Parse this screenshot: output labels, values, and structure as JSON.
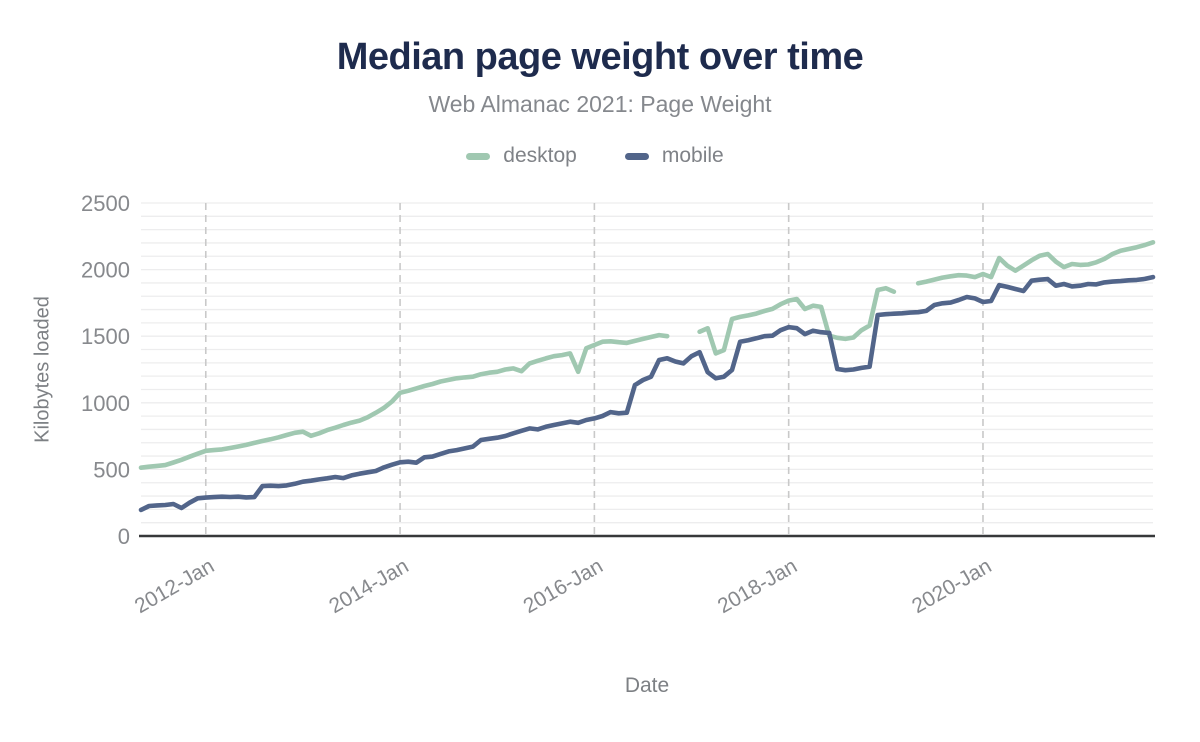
{
  "header": {
    "title": "Median page weight over time",
    "subtitle": "Web Almanac 2021: Page Weight"
  },
  "legend": [
    {
      "label": "desktop",
      "color": "#a0c8b1"
    },
    {
      "label": "mobile",
      "color": "#52658a"
    }
  ],
  "axes": {
    "y_title": "Kilobytes loaded",
    "x_title": "Date"
  },
  "colors": {
    "title": "#1e2b4d",
    "subtitle_gray": "#85888d",
    "tick_gray": "#87898d",
    "minor_grid": "#ededee",
    "vertical_grid": "#c9c9c9",
    "axis_line": "#37383a",
    "desktop": "#a0c8b1",
    "mobile": "#52658a"
  },
  "chart_data": {
    "type": "line",
    "title": "Median page weight over time",
    "subtitle": "Web Almanac 2021: Page Weight",
    "xlabel": "Date",
    "ylabel": "Kilobytes loaded",
    "ylim": [
      0,
      2500
    ],
    "yticks": [
      0,
      500,
      1000,
      1500,
      2000,
      2500
    ],
    "minor_grid_step": 100,
    "grid": "horizontal minor solid, vertical dashed at ticks",
    "legend_position": "top",
    "x_interval": "monthly",
    "x_start": "2011-May",
    "x_end": "2021-Oct",
    "xticks": [
      "2012-Jan",
      "2014-Jan",
      "2016-Jan",
      "2018-Jan",
      "2020-Jan"
    ],
    "xtick_month_index": [
      8,
      32,
      56,
      80,
      104
    ],
    "series": [
      {
        "name": "desktop",
        "color": "#a0c8b1",
        "values": [
          513,
          520,
          526,
          532,
          552,
          572,
          595,
          618,
          640,
          645,
          650,
          661,
          672,
          684,
          699,
          713,
          726,
          741,
          758,
          775,
          783,
          752,
          771,
          795,
          813,
          833,
          851,
          866,
          891,
          925,
          962,
          1010,
          1075,
          1090,
          1108,
          1126,
          1141,
          1160,
          1172,
          1184,
          1191,
          1196,
          1215,
          1226,
          1233,
          1250,
          1258,
          1237,
          1296,
          1315,
          1333,
          1350,
          1358,
          1371,
          1233,
          1409,
          1434,
          1459,
          1462,
          1455,
          1450,
          1465,
          1480,
          1494,
          1508,
          1500,
          null,
          null,
          null,
          1534,
          1559,
          1371,
          1396,
          1629,
          1645,
          1656,
          1670,
          1689,
          1705,
          1740,
          1767,
          1779,
          1704,
          1729,
          1720,
          1504,
          1488,
          1480,
          1490,
          1545,
          1580,
          1847,
          1860,
          1834,
          null,
          null,
          1897,
          1910,
          1925,
          1940,
          1950,
          1958,
          1955,
          1944,
          1967,
          1944,
          2087,
          2029,
          1992,
          2030,
          2070,
          2104,
          2117,
          2060,
          2019,
          2042,
          2035,
          2038,
          2055,
          2080,
          2117,
          2142,
          2155,
          2168,
          2185,
          2205
        ]
      },
      {
        "name": "mobile",
        "color": "#52658a",
        "values": [
          196,
          225,
          230,
          233,
          240,
          210,
          250,
          283,
          288,
          292,
          295,
          293,
          295,
          290,
          292,
          375,
          378,
          375,
          380,
          392,
          408,
          415,
          425,
          433,
          443,
          435,
          455,
          468,
          478,
          488,
          515,
          535,
          553,
          558,
          550,
          591,
          596,
          616,
          635,
          645,
          658,
          671,
          721,
          730,
          738,
          751,
          771,
          790,
          808,
          800,
          820,
          833,
          845,
          858,
          850,
          871,
          883,
          901,
          930,
          921,
          926,
          1133,
          1171,
          1196,
          1321,
          1334,
          1310,
          1296,
          1350,
          1380,
          1230,
          1184,
          1196,
          1246,
          1459,
          1470,
          1484,
          1500,
          1504,
          1545,
          1568,
          1560,
          1516,
          1541,
          1530,
          1525,
          1254,
          1245,
          1250,
          1262,
          1271,
          1659,
          1665,
          1669,
          1672,
          1677,
          1680,
          1690,
          1734,
          1747,
          1752,
          1772,
          1794,
          1784,
          1757,
          1764,
          1884,
          1870,
          1854,
          1839,
          1917,
          1924,
          1929,
          1879,
          1892,
          1874,
          1879,
          1892,
          1889,
          1904,
          1910,
          1914,
          1920,
          1923,
          1930,
          1944
        ]
      }
    ]
  }
}
